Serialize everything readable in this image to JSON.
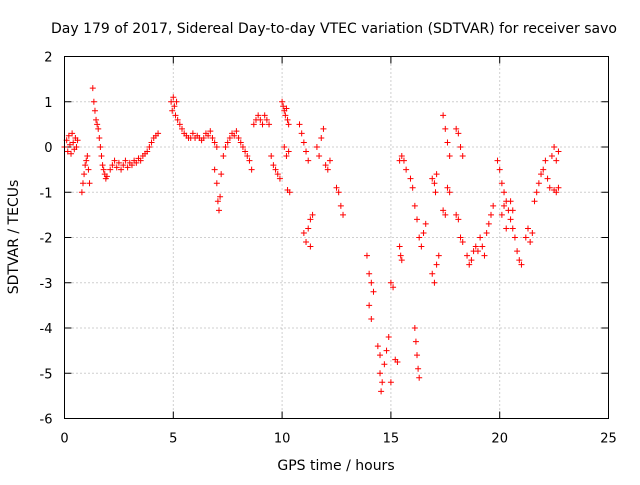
{
  "chart_data": {
    "type": "scatter",
    "title": "Day 179 of 2017, Sidereal Day-to-day VTEC variation (SDTVAR) for receiver savo",
    "xlabel": "GPS time / hours",
    "ylabel": "SDTVAR / TECUs",
    "xlim": [
      0,
      25
    ],
    "ylim": [
      -6,
      2
    ],
    "xticks": [
      0,
      5,
      10,
      15,
      20,
      25
    ],
    "yticks": [
      -6,
      -5,
      -4,
      -3,
      -2,
      -1,
      0,
      1,
      2
    ],
    "grid": true,
    "marker": "+",
    "color": "#ff0000",
    "series": [
      {
        "name": "SDTVAR",
        "points": [
          [
            0.0,
            0.0
          ],
          [
            0.1,
            0.15
          ],
          [
            0.15,
            -0.1
          ],
          [
            0.2,
            0.25
          ],
          [
            0.25,
            0.05
          ],
          [
            0.3,
            -0.15
          ],
          [
            0.35,
            0.3
          ],
          [
            0.4,
            0.1
          ],
          [
            0.45,
            -0.05
          ],
          [
            0.5,
            0.2
          ],
          [
            0.55,
            0.0
          ],
          [
            0.6,
            0.15
          ],
          [
            0.8,
            -1.0
          ],
          [
            0.85,
            -0.8
          ],
          [
            0.9,
            -0.6
          ],
          [
            0.95,
            -0.4
          ],
          [
            1.0,
            -0.3
          ],
          [
            1.05,
            -0.2
          ],
          [
            1.1,
            -0.5
          ],
          [
            1.15,
            -0.8
          ],
          [
            1.3,
            1.3
          ],
          [
            1.35,
            1.0
          ],
          [
            1.4,
            0.8
          ],
          [
            1.45,
            0.6
          ],
          [
            1.5,
            0.5
          ],
          [
            1.55,
            0.4
          ],
          [
            1.6,
            0.2
          ],
          [
            1.65,
            0.0
          ],
          [
            1.7,
            -0.2
          ],
          [
            1.75,
            -0.4
          ],
          [
            1.8,
            -0.5
          ],
          [
            1.85,
            -0.6
          ],
          [
            1.9,
            -0.7
          ],
          [
            1.95,
            -0.65
          ],
          [
            2.1,
            -0.5
          ],
          [
            2.2,
            -0.4
          ],
          [
            2.3,
            -0.3
          ],
          [
            2.4,
            -0.45
          ],
          [
            2.5,
            -0.35
          ],
          [
            2.6,
            -0.5
          ],
          [
            2.7,
            -0.4
          ],
          [
            2.8,
            -0.3
          ],
          [
            2.9,
            -0.45
          ],
          [
            3.0,
            -0.35
          ],
          [
            3.1,
            -0.4
          ],
          [
            3.2,
            -0.3
          ],
          [
            3.3,
            -0.35
          ],
          [
            3.4,
            -0.25
          ],
          [
            3.5,
            -0.3
          ],
          [
            3.6,
            -0.2
          ],
          [
            3.7,
            -0.15
          ],
          [
            3.8,
            -0.1
          ],
          [
            3.9,
            0.0
          ],
          [
            4.0,
            0.1
          ],
          [
            4.1,
            0.2
          ],
          [
            4.2,
            0.25
          ],
          [
            4.3,
            0.3
          ],
          [
            4.9,
            1.0
          ],
          [
            4.95,
            0.8
          ],
          [
            5.0,
            1.1
          ],
          [
            5.05,
            0.9
          ],
          [
            5.1,
            0.7
          ],
          [
            5.15,
            1.0
          ],
          [
            5.2,
            0.6
          ],
          [
            5.3,
            0.5
          ],
          [
            5.4,
            0.4
          ],
          [
            5.5,
            0.3
          ],
          [
            5.6,
            0.25
          ],
          [
            5.7,
            0.2
          ],
          [
            5.8,
            0.2
          ],
          [
            5.9,
            0.3
          ],
          [
            6.0,
            0.2
          ],
          [
            6.1,
            0.25
          ],
          [
            6.2,
            0.2
          ],
          [
            6.3,
            0.15
          ],
          [
            6.4,
            0.2
          ],
          [
            6.5,
            0.3
          ],
          [
            6.6,
            0.25
          ],
          [
            6.7,
            0.35
          ],
          [
            6.8,
            0.2
          ],
          [
            6.9,
            0.1
          ],
          [
            7.0,
            0.0
          ],
          [
            6.9,
            -0.5
          ],
          [
            7.0,
            -0.8
          ],
          [
            7.05,
            -1.2
          ],
          [
            7.1,
            -1.4
          ],
          [
            7.15,
            -1.1
          ],
          [
            7.2,
            -0.6
          ],
          [
            7.3,
            -0.2
          ],
          [
            7.4,
            0.0
          ],
          [
            7.5,
            0.1
          ],
          [
            7.6,
            0.2
          ],
          [
            7.7,
            0.3
          ],
          [
            7.8,
            0.25
          ],
          [
            7.9,
            0.35
          ],
          [
            8.0,
            0.2
          ],
          [
            8.1,
            0.1
          ],
          [
            8.2,
            0.0
          ],
          [
            8.3,
            -0.1
          ],
          [
            8.4,
            -0.2
          ],
          [
            8.5,
            -0.3
          ],
          [
            8.6,
            -0.5
          ],
          [
            8.7,
            0.5
          ],
          [
            8.8,
            0.6
          ],
          [
            8.9,
            0.7
          ],
          [
            9.0,
            0.6
          ],
          [
            9.1,
            0.5
          ],
          [
            9.2,
            0.7
          ],
          [
            9.3,
            0.6
          ],
          [
            9.4,
            0.5
          ],
          [
            9.5,
            -0.2
          ],
          [
            9.6,
            -0.4
          ],
          [
            9.7,
            -0.5
          ],
          [
            9.8,
            -0.6
          ],
          [
            9.9,
            -0.7
          ],
          [
            10.0,
            1.0
          ],
          [
            10.05,
            0.9
          ],
          [
            10.1,
            0.8
          ],
          [
            10.15,
            0.7
          ],
          [
            10.2,
            0.85
          ],
          [
            10.25,
            0.6
          ],
          [
            10.3,
            0.5
          ],
          [
            10.1,
            0.0
          ],
          [
            10.2,
            -0.2
          ],
          [
            10.3,
            -0.1
          ],
          [
            10.25,
            -0.95
          ],
          [
            10.35,
            -1.0
          ],
          [
            10.8,
            0.5
          ],
          [
            10.9,
            0.3
          ],
          [
            11.0,
            0.1
          ],
          [
            11.1,
            -0.1
          ],
          [
            11.2,
            -0.3
          ],
          [
            11.0,
            -1.9
          ],
          [
            11.1,
            -2.1
          ],
          [
            11.2,
            -1.8
          ],
          [
            11.3,
            -1.6
          ],
          [
            11.4,
            -1.5
          ],
          [
            11.3,
            -2.2
          ],
          [
            11.6,
            0.0
          ],
          [
            11.7,
            -0.2
          ],
          [
            11.8,
            0.2
          ],
          [
            11.9,
            0.4
          ],
          [
            12.0,
            -0.4
          ],
          [
            12.1,
            -0.5
          ],
          [
            12.2,
            -0.3
          ],
          [
            12.5,
            -0.9
          ],
          [
            12.6,
            -1.0
          ],
          [
            12.7,
            -1.3
          ],
          [
            12.8,
            -1.5
          ],
          [
            13.9,
            -2.4
          ],
          [
            14.0,
            -2.8
          ],
          [
            14.1,
            -3.0
          ],
          [
            14.2,
            -3.2
          ],
          [
            14.0,
            -3.5
          ],
          [
            14.1,
            -3.8
          ],
          [
            14.4,
            -4.4
          ],
          [
            14.5,
            -4.6
          ],
          [
            14.5,
            -5.0
          ],
          [
            14.55,
            -5.4
          ],
          [
            14.6,
            -5.2
          ],
          [
            14.7,
            -4.8
          ],
          [
            14.8,
            -4.5
          ],
          [
            14.9,
            -4.2
          ],
          [
            15.0,
            -5.2
          ],
          [
            15.0,
            -3.0
          ],
          [
            15.1,
            -3.1
          ],
          [
            15.2,
            -4.7
          ],
          [
            15.3,
            -4.75
          ],
          [
            15.4,
            -2.2
          ],
          [
            15.45,
            -2.4
          ],
          [
            15.5,
            -2.5
          ],
          [
            15.4,
            -0.3
          ],
          [
            15.5,
            -0.2
          ],
          [
            15.6,
            -0.3
          ],
          [
            15.7,
            -0.5
          ],
          [
            15.9,
            -0.7
          ],
          [
            16.0,
            -0.9
          ],
          [
            16.1,
            -4.0
          ],
          [
            16.15,
            -4.3
          ],
          [
            16.2,
            -4.6
          ],
          [
            16.25,
            -4.9
          ],
          [
            16.3,
            -5.1
          ],
          [
            16.1,
            -1.3
          ],
          [
            16.2,
            -1.6
          ],
          [
            16.3,
            -2.0
          ],
          [
            16.4,
            -2.2
          ],
          [
            16.5,
            -1.9
          ],
          [
            16.6,
            -1.7
          ],
          [
            16.9,
            -0.7
          ],
          [
            17.0,
            -0.8
          ],
          [
            17.05,
            -1.0
          ],
          [
            17.1,
            -0.6
          ],
          [
            16.9,
            -2.8
          ],
          [
            17.0,
            -3.0
          ],
          [
            17.1,
            -2.6
          ],
          [
            17.2,
            -2.4
          ],
          [
            17.4,
            0.7
          ],
          [
            17.5,
            0.4
          ],
          [
            17.6,
            0.1
          ],
          [
            17.7,
            -0.2
          ],
          [
            17.4,
            -1.4
          ],
          [
            17.5,
            -1.5
          ],
          [
            17.6,
            -0.9
          ],
          [
            17.7,
            -1.0
          ],
          [
            18.0,
            0.4
          ],
          [
            18.1,
            0.3
          ],
          [
            18.2,
            0.0
          ],
          [
            18.3,
            -0.2
          ],
          [
            18.0,
            -1.5
          ],
          [
            18.1,
            -1.6
          ],
          [
            18.2,
            -2.0
          ],
          [
            18.3,
            -2.1
          ],
          [
            18.5,
            -2.4
          ],
          [
            18.6,
            -2.6
          ],
          [
            18.7,
            -2.5
          ],
          [
            18.8,
            -2.3
          ],
          [
            18.9,
            -2.2
          ],
          [
            19.0,
            -2.3
          ],
          [
            19.1,
            -2.0
          ],
          [
            19.2,
            -2.2
          ],
          [
            19.3,
            -2.4
          ],
          [
            19.4,
            -1.9
          ],
          [
            19.5,
            -1.7
          ],
          [
            19.6,
            -1.5
          ],
          [
            19.7,
            -1.3
          ],
          [
            19.9,
            -0.3
          ],
          [
            20.0,
            -0.5
          ],
          [
            20.1,
            -0.8
          ],
          [
            20.2,
            -1.0
          ],
          [
            20.3,
            -1.2
          ],
          [
            20.4,
            -1.4
          ],
          [
            20.5,
            -1.6
          ],
          [
            20.6,
            -1.8
          ],
          [
            20.7,
            -2.0
          ],
          [
            20.8,
            -2.3
          ],
          [
            20.9,
            -2.5
          ],
          [
            21.0,
            -2.6
          ],
          [
            20.1,
            -1.5
          ],
          [
            20.2,
            -1.3
          ],
          [
            20.3,
            -1.8
          ],
          [
            20.5,
            -1.2
          ],
          [
            20.6,
            -1.4
          ],
          [
            21.2,
            -2.0
          ],
          [
            21.3,
            -1.8
          ],
          [
            21.4,
            -2.1
          ],
          [
            21.5,
            -1.9
          ],
          [
            21.6,
            -1.2
          ],
          [
            21.7,
            -1.0
          ],
          [
            21.8,
            -0.8
          ],
          [
            21.9,
            -0.6
          ],
          [
            22.0,
            -0.5
          ],
          [
            22.1,
            -0.3
          ],
          [
            22.2,
            -0.7
          ],
          [
            22.3,
            -0.9
          ],
          [
            22.4,
            -0.2
          ],
          [
            22.5,
            0.0
          ],
          [
            22.6,
            -0.3
          ],
          [
            22.7,
            -0.1
          ],
          [
            22.5,
            -0.95
          ],
          [
            22.6,
            -1.0
          ],
          [
            22.7,
            -0.9
          ]
        ]
      }
    ]
  }
}
